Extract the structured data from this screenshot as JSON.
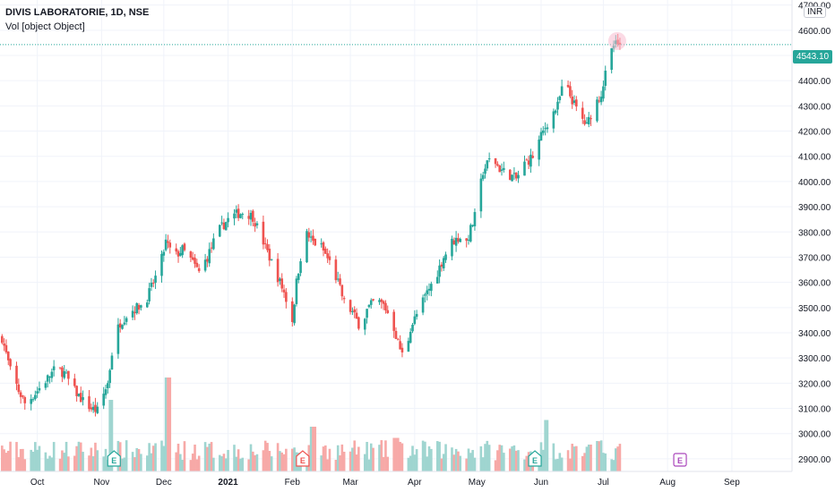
{
  "legend": {
    "title": "DIVIS LABORATORIE, 1D, NSE",
    "volume_label": "Vol [object Object]"
  },
  "currency": "INR",
  "last_price": "4543.10",
  "colors": {
    "up": "#26a69a",
    "down": "#ef5350",
    "up_volume": "#9fd5d0",
    "down_volume": "#f7a9a7",
    "grid": "#f0f3fa",
    "axis_text": "#131722",
    "earnings_future": "#ab47bc",
    "highlight": "#f8bbd0"
  },
  "chart_data": {
    "type": "candlestick",
    "y_axis": {
      "position": "right",
      "ylim": [
        2850,
        4720
      ],
      "ticks": [
        2900,
        3000,
        3100,
        3200,
        3300,
        3400,
        3500,
        3600,
        3700,
        3800,
        3900,
        4000,
        4100,
        4200,
        4300,
        4400,
        4500,
        4600,
        4700
      ],
      "tick_labels": [
        "2900.00",
        "3000.00",
        "3100.00",
        "3200.00",
        "3300.00",
        "3400.00",
        "3500.00",
        "3600.00",
        "3700.00",
        "3800.00",
        "3900.00",
        "4000.00",
        "4100.00",
        "4200.00",
        "4300.00",
        "4400.00",
        "4500.00",
        "4600.00",
        "4700.00"
      ]
    },
    "x_axis": {
      "ticks": [
        "2020-10-01",
        "2020-11-01",
        "2020-12-01",
        "2021-01-01",
        "2021-02-01",
        "2021-03-01",
        "2021-04-01",
        "2021-05-01",
        "2021-06-01",
        "2021-07-01",
        "2021-08-01",
        "2021-09-01"
      ],
      "tick_labels": [
        "Oct",
        "Nov",
        "Dec",
        "2021",
        "Feb",
        "Mar",
        "Apr",
        "May",
        "Jun",
        "Jul",
        "Aug",
        "Sep"
      ],
      "range": [
        "2020-09-13",
        "2021-09-30"
      ]
    },
    "grid": true,
    "last_price_line": 4543.1,
    "price_path": [
      [
        "2020-09-14",
        3380
      ],
      [
        "2020-09-18",
        3250
      ],
      [
        "2020-09-22",
        3170
      ],
      [
        "2020-09-25",
        3120
      ],
      [
        "2020-09-29",
        3150
      ],
      [
        "2020-10-02",
        3180
      ],
      [
        "2020-10-06",
        3220
      ],
      [
        "2020-10-10",
        3260
      ],
      [
        "2020-10-14",
        3240
      ],
      [
        "2020-10-19",
        3170
      ],
      [
        "2020-10-23",
        3130
      ],
      [
        "2020-10-27",
        3100
      ],
      [
        "2020-10-30",
        3090
      ],
      [
        "2020-11-04",
        3200
      ],
      [
        "2020-11-07",
        3380
      ],
      [
        "2020-11-10",
        3440
      ],
      [
        "2020-11-14",
        3480
      ],
      [
        "2020-11-18",
        3500
      ],
      [
        "2020-11-22",
        3520
      ],
      [
        "2020-11-26",
        3600
      ],
      [
        "2020-11-29",
        3660
      ],
      [
        "2020-12-02",
        3760
      ],
      [
        "2020-12-06",
        3700
      ],
      [
        "2020-12-10",
        3730
      ],
      [
        "2020-12-14",
        3690
      ],
      [
        "2020-12-18",
        3640
      ],
      [
        "2020-12-22",
        3700
      ],
      [
        "2020-12-25",
        3760
      ],
      [
        "2020-12-28",
        3810
      ],
      [
        "2021-01-01",
        3850
      ],
      [
        "2021-01-05",
        3870
      ],
      [
        "2021-01-09",
        3880
      ],
      [
        "2021-01-13",
        3860
      ],
      [
        "2021-01-17",
        3780
      ],
      [
        "2021-01-21",
        3700
      ],
      [
        "2021-01-25",
        3620
      ],
      [
        "2021-01-28",
        3560
      ],
      [
        "2021-02-01",
        3450
      ],
      [
        "2021-02-03",
        3600
      ],
      [
        "2021-02-07",
        3800
      ],
      [
        "2021-02-11",
        3760
      ],
      [
        "2021-02-15",
        3740
      ],
      [
        "2021-02-19",
        3680
      ],
      [
        "2021-02-23",
        3600
      ],
      [
        "2021-02-26",
        3520
      ],
      [
        "2021-03-02",
        3480
      ],
      [
        "2021-03-06",
        3420
      ],
      [
        "2021-03-09",
        3490
      ],
      [
        "2021-03-13",
        3530
      ],
      [
        "2021-03-17",
        3510
      ],
      [
        "2021-03-21",
        3450
      ],
      [
        "2021-03-24",
        3360
      ],
      [
        "2021-03-27",
        3290
      ],
      [
        "2021-03-30",
        3420
      ],
      [
        "2021-04-03",
        3490
      ],
      [
        "2021-04-07",
        3560
      ],
      [
        "2021-04-11",
        3620
      ],
      [
        "2021-04-15",
        3700
      ],
      [
        "2021-04-19",
        3760
      ],
      [
        "2021-04-23",
        3780
      ],
      [
        "2021-04-26",
        3760
      ],
      [
        "2021-04-30",
        3860
      ],
      [
        "2021-05-04",
        4040
      ],
      [
        "2021-05-08",
        4100
      ],
      [
        "2021-05-12",
        4050
      ],
      [
        "2021-05-16",
        4030
      ],
      [
        "2021-05-20",
        4010
      ],
      [
        "2021-05-24",
        4070
      ],
      [
        "2021-05-28",
        4100
      ],
      [
        "2021-06-01",
        4180
      ],
      [
        "2021-06-05",
        4250
      ],
      [
        "2021-06-09",
        4300
      ],
      [
        "2021-06-12",
        4400
      ],
      [
        "2021-06-15",
        4340
      ],
      [
        "2021-06-19",
        4270
      ],
      [
        "2021-06-23",
        4220
      ],
      [
        "2021-06-26",
        4290
      ],
      [
        "2021-06-30",
        4350
      ],
      [
        "2021-07-03",
        4460
      ],
      [
        "2021-07-06",
        4540
      ],
      [
        "2021-07-09",
        4543.1
      ]
    ],
    "volume_spikes": [
      [
        "2020-11-06",
        3.2
      ],
      [
        "2020-12-03",
        4.2
      ],
      [
        "2021-02-11",
        2.0
      ],
      [
        "2021-03-23",
        1.5
      ],
      [
        "2021-06-04",
        2.3
      ],
      [
        "2021-06-25",
        1.2
      ]
    ],
    "earnings_events": [
      {
        "date": "2020-11-07",
        "label": "E",
        "state": "past"
      },
      {
        "date": "2021-02-06",
        "label": "E",
        "state": "past"
      },
      {
        "date": "2021-05-29",
        "label": "E",
        "state": "past"
      },
      {
        "date": "2021-08-07",
        "label": "E",
        "state": "future"
      }
    ]
  }
}
